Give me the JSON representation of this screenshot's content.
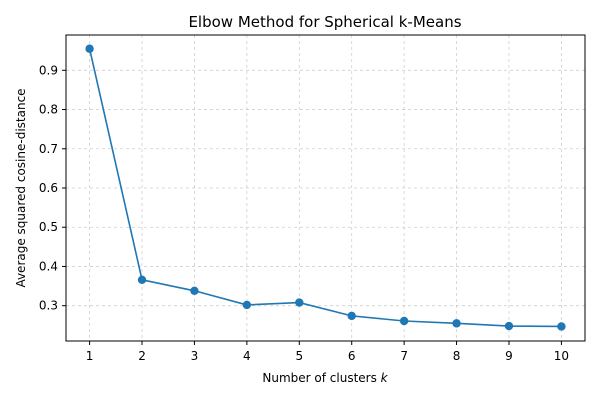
{
  "chart_data": {
    "type": "line",
    "title": "Elbow Method for Spherical k-Means",
    "xlabel": "Number of clusters",
    "xlabel_var": "k",
    "ylabel": "Average squared cosine-distance",
    "x": [
      1,
      2,
      3,
      4,
      5,
      6,
      7,
      8,
      9,
      10
    ],
    "series": [
      {
        "values": [
          0.955,
          0.366,
          0.338,
          0.302,
          0.308,
          0.274,
          0.261,
          0.255,
          0.248,
          0.247
        ],
        "color": "#1f77b4",
        "marker": "circle"
      }
    ],
    "xlim": [
      0.55,
      10.45
    ],
    "ylim": [
      0.21,
      0.99
    ],
    "xticks": [
      1,
      2,
      3,
      4,
      5,
      6,
      7,
      8,
      9,
      10
    ],
    "yticks": [
      0.3,
      0.4,
      0.5,
      0.6,
      0.7,
      0.8,
      0.9
    ],
    "grid": true
  }
}
